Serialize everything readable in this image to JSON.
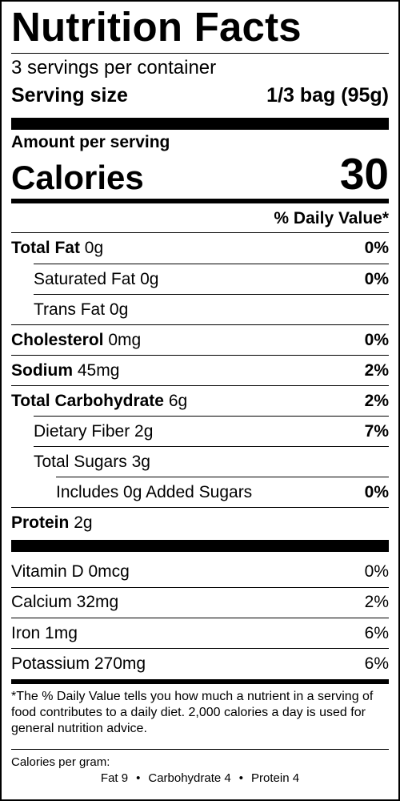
{
  "title": "Nutrition Facts",
  "servings_per_container": "3 servings per container",
  "serving_size": {
    "label": "Serving size",
    "value": "1/3 bag (95g)"
  },
  "amount_per_serving": "Amount per serving",
  "calories": {
    "label": "Calories",
    "value": "30"
  },
  "daily_value_header": "% Daily Value*",
  "nutrients": [
    {
      "name": "Total Fat",
      "amount": "0g",
      "dv": "0%"
    },
    {
      "name": "Saturated Fat",
      "amount": "0g",
      "dv": "0%"
    },
    {
      "name": "Trans Fat",
      "amount": "0g",
      "dv": ""
    },
    {
      "name": "Cholesterol",
      "amount": "0mg",
      "dv": "0%"
    },
    {
      "name": "Sodium",
      "amount": "45mg",
      "dv": "2%"
    },
    {
      "name": "Total Carbohydrate",
      "amount": "6g",
      "dv": "2%"
    },
    {
      "name": "Dietary Fiber",
      "amount": "2g",
      "dv": "7%"
    },
    {
      "name": "Total Sugars",
      "amount": "3g",
      "dv": ""
    },
    {
      "name": "Includes 0g Added Sugars",
      "amount": "",
      "dv": "0%"
    },
    {
      "name": "Protein",
      "amount": "2g",
      "dv": ""
    }
  ],
  "vitamins_minerals": [
    {
      "text": "Vitamin D 0mcg",
      "dv": "0%"
    },
    {
      "text": "Calcium 32mg",
      "dv": "2%"
    },
    {
      "text": "Iron 1mg",
      "dv": "6%"
    },
    {
      "text": "Potassium 270mg",
      "dv": "6%"
    }
  ],
  "footnote": "*The % Daily Value tells you how much a nutrient in a serving of food contributes to a daily diet. 2,000 calories a day is used for general nutrition advice.",
  "calories_per_gram": {
    "label": "Calories per gram:",
    "fat": "Fat 9",
    "carbohydrate": "Carbohydrate 4",
    "protein": "Protein 4",
    "separator": "•"
  }
}
